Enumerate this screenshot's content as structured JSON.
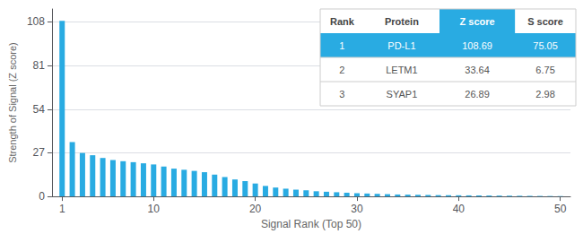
{
  "chart_data": {
    "type": "bar",
    "xlabel": "Signal Rank (Top 50)",
    "ylabel": "Strength of Signal (Z score)",
    "x": [
      1,
      2,
      3,
      4,
      5,
      6,
      7,
      8,
      9,
      10,
      11,
      12,
      13,
      14,
      15,
      16,
      17,
      18,
      19,
      20,
      21,
      22,
      23,
      24,
      25,
      26,
      27,
      28,
      29,
      30,
      31,
      32,
      33,
      34,
      35,
      36,
      37,
      38,
      39,
      40,
      41,
      42,
      43,
      44,
      45,
      46,
      47,
      48,
      49,
      50
    ],
    "values": [
      108.69,
      33.64,
      26.89,
      25.5,
      23.8,
      22.5,
      21.8,
      21.2,
      20.5,
      19.8,
      18.5,
      17.2,
      16.5,
      15.8,
      15.0,
      13.5,
      12.0,
      10.5,
      9.5,
      8.0,
      6.5,
      5.5,
      4.8,
      4.2,
      3.8,
      3.2,
      2.9,
      2.6,
      2.3,
      2.0,
      1.8,
      1.6,
      1.4,
      1.2,
      1.1,
      1.0,
      0.9,
      0.8,
      0.75,
      0.7,
      0.65,
      0.6,
      0.55,
      0.5,
      0.45,
      0.4,
      0.35,
      0.3,
      0.25,
      0.2
    ],
    "color": "#29ABE2",
    "xlim": [
      0,
      51
    ],
    "xticks": [
      1,
      10,
      20,
      30,
      40,
      50
    ],
    "ylim": [
      0,
      116
    ],
    "yticks": [
      0,
      27,
      54,
      81,
      108
    ],
    "grid": true,
    "table": {
      "headers": [
        "Rank",
        "Protein",
        "Z score",
        "S score"
      ],
      "rows": [
        [
          "1",
          "PD-L1",
          "108.69",
          "75.05"
        ],
        [
          "2",
          "LETM1",
          "33.64",
          "6.75"
        ],
        [
          "3",
          "SYAP1",
          "26.89",
          "2.98"
        ]
      ],
      "color": "#29ABE2"
    }
  }
}
